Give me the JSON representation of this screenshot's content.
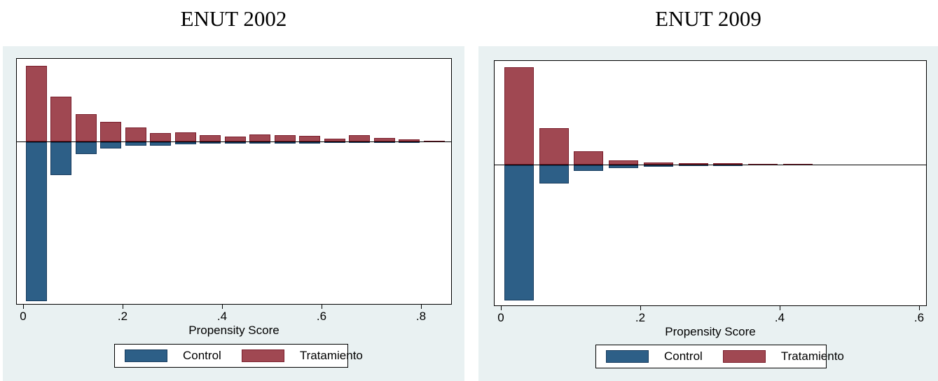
{
  "page": {
    "background": "#FFFFFF"
  },
  "colors": {
    "panel_background": "#E9F1F2",
    "plot_background": "#FFFFFF",
    "axis_and_frame": "#000000",
    "control_fill": "#2D5F87",
    "control_border": "#173B5E",
    "treatment_fill": "#A04852",
    "treatment_border": "#7A1E2C"
  },
  "chart_data": [
    {
      "type": "bar",
      "variant": "mirrored-propensity-histogram",
      "title": "ENUT 2002",
      "xlabel": "Propensity Score",
      "x_tick_labels": [
        "0",
        ".2",
        ".4",
        ".6",
        ".8"
      ],
      "x_tick_values": [
        0,
        0.2,
        0.4,
        0.6,
        0.8
      ],
      "xlim": [
        0,
        0.86
      ],
      "bin_width": 0.05,
      "y_axis": "unlabeled relative frequency; heights given in rendered pixels (treatment up, control down)",
      "grid": false,
      "legend_position": "below",
      "legend": [
        {
          "name": "Control",
          "color": "#2D5F87",
          "direction": "down"
        },
        {
          "name": "Tratamiento",
          "color": "#A04852",
          "direction": "up"
        }
      ],
      "bins": [
        {
          "x0": 0.0,
          "tratamiento": 108,
          "control": 227
        },
        {
          "x0": 0.05,
          "tratamiento": 64,
          "control": 47
        },
        {
          "x0": 0.1,
          "tratamiento": 39,
          "control": 17
        },
        {
          "x0": 0.15,
          "tratamiento": 28,
          "control": 9
        },
        {
          "x0": 0.2,
          "tratamiento": 20,
          "control": 5
        },
        {
          "x0": 0.25,
          "tratamiento": 12,
          "control": 5
        },
        {
          "x0": 0.3,
          "tratamiento": 13,
          "control": 3
        },
        {
          "x0": 0.35,
          "tratamiento": 9,
          "control": 2
        },
        {
          "x0": 0.4,
          "tratamiento": 7,
          "control": 2
        },
        {
          "x0": 0.45,
          "tratamiento": 10,
          "control": 2
        },
        {
          "x0": 0.5,
          "tratamiento": 9,
          "control": 2
        },
        {
          "x0": 0.55,
          "tratamiento": 8,
          "control": 2
        },
        {
          "x0": 0.6,
          "tratamiento": 4,
          "control": 1
        },
        {
          "x0": 0.65,
          "tratamiento": 9,
          "control": 1
        },
        {
          "x0": 0.7,
          "tratamiento": 5,
          "control": 1
        },
        {
          "x0": 0.75,
          "tratamiento": 3,
          "control": 1
        },
        {
          "x0": 0.8,
          "tratamiento": 1,
          "control": 0
        }
      ]
    },
    {
      "type": "bar",
      "variant": "mirrored-propensity-histogram",
      "title": "ENUT 2009",
      "xlabel": "Propensity Score",
      "x_tick_labels": [
        "0",
        ".2",
        ".4",
        ".6"
      ],
      "x_tick_values": [
        0,
        0.2,
        0.4,
        0.6
      ],
      "xlim": [
        0,
        0.62
      ],
      "bin_width": 0.05,
      "y_axis": "unlabeled relative frequency; heights given in rendered pixels (treatment up, control down)",
      "grid": false,
      "legend_position": "below",
      "legend": [
        {
          "name": "Control",
          "color": "#2D5F87",
          "direction": "down"
        },
        {
          "name": "Tratamiento",
          "color": "#A04852",
          "direction": "up"
        }
      ],
      "bins": [
        {
          "x0": 0.0,
          "tratamiento": 139,
          "control": 193
        },
        {
          "x0": 0.05,
          "tratamiento": 52,
          "control": 26
        },
        {
          "x0": 0.1,
          "tratamiento": 19,
          "control": 8
        },
        {
          "x0": 0.15,
          "tratamiento": 6,
          "control": 4
        },
        {
          "x0": 0.2,
          "tratamiento": 3,
          "control": 2
        },
        {
          "x0": 0.25,
          "tratamiento": 2,
          "control": 1
        },
        {
          "x0": 0.3,
          "tratamiento": 2,
          "control": 1
        },
        {
          "x0": 0.35,
          "tratamiento": 1,
          "control": 0
        },
        {
          "x0": 0.4,
          "tratamiento": 1,
          "control": 0
        }
      ]
    }
  ]
}
